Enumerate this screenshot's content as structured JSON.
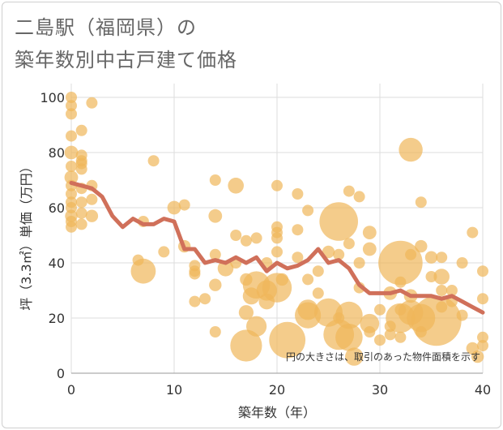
{
  "title_line1": "二島駅（福岡県）の",
  "title_line2": "築年数別中古戸建て価格",
  "chart_data": {
    "type": "scatter",
    "xlabel": "築年数（年）",
    "ylabel": "坪（3.3㎡）単価（万円）",
    "xlim": [
      0,
      40
    ],
    "ylim": [
      0,
      105
    ],
    "xticks": [
      0,
      10,
      20,
      30,
      40
    ],
    "yticks": [
      0,
      20,
      40,
      60,
      80,
      100
    ],
    "annotation": "円の大きさは、取引のあった物件面積を示す",
    "grid": true,
    "colors": {
      "bubble": "#f0b65a",
      "line": "#d0705a"
    },
    "points": [
      {
        "x": 0,
        "y": 100,
        "s": 1
      },
      {
        "x": 0,
        "y": 97,
        "s": 1
      },
      {
        "x": 0,
        "y": 94,
        "s": 1
      },
      {
        "x": 0,
        "y": 86,
        "s": 1
      },
      {
        "x": 0,
        "y": 80,
        "s": 1.2
      },
      {
        "x": 0,
        "y": 75,
        "s": 1
      },
      {
        "x": 0,
        "y": 71,
        "s": 1.2
      },
      {
        "x": 0,
        "y": 68,
        "s": 1
      },
      {
        "x": 0,
        "y": 65,
        "s": 1
      },
      {
        "x": 0,
        "y": 62,
        "s": 1
      },
      {
        "x": 0,
        "y": 60,
        "s": 1
      },
      {
        "x": 0,
        "y": 57,
        "s": 1.1
      },
      {
        "x": 0,
        "y": 55,
        "s": 1
      },
      {
        "x": 0,
        "y": 53,
        "s": 1
      },
      {
        "x": 1,
        "y": 88,
        "s": 1
      },
      {
        "x": 1,
        "y": 79,
        "s": 1
      },
      {
        "x": 1,
        "y": 77,
        "s": 1
      },
      {
        "x": 1,
        "y": 76,
        "s": 1
      },
      {
        "x": 1,
        "y": 74,
        "s": 1
      },
      {
        "x": 1,
        "y": 67,
        "s": 1
      },
      {
        "x": 1,
        "y": 62,
        "s": 1
      },
      {
        "x": 1,
        "y": 58,
        "s": 1
      },
      {
        "x": 1,
        "y": 54,
        "s": 1
      },
      {
        "x": 2,
        "y": 98,
        "s": 1
      },
      {
        "x": 2,
        "y": 68,
        "s": 1
      },
      {
        "x": 2,
        "y": 63,
        "s": 1
      },
      {
        "x": 2,
        "y": 57,
        "s": 1.1
      },
      {
        "x": 6.5,
        "y": 41,
        "s": 1
      },
      {
        "x": 7,
        "y": 37,
        "s": 2.2
      },
      {
        "x": 7,
        "y": 55,
        "s": 1
      },
      {
        "x": 8,
        "y": 77,
        "s": 1
      },
      {
        "x": 9,
        "y": 44,
        "s": 1
      },
      {
        "x": 10,
        "y": 60,
        "s": 1.2
      },
      {
        "x": 11,
        "y": 61,
        "s": 1
      },
      {
        "x": 11,
        "y": 46,
        "s": 1.1
      },
      {
        "x": 12,
        "y": 39,
        "s": 1
      },
      {
        "x": 12,
        "y": 37,
        "s": 1
      },
      {
        "x": 12,
        "y": 36,
        "s": 1
      },
      {
        "x": 12,
        "y": 26,
        "s": 1
      },
      {
        "x": 13,
        "y": 27,
        "s": 1
      },
      {
        "x": 14,
        "y": 70,
        "s": 1
      },
      {
        "x": 14,
        "y": 57,
        "s": 1.2
      },
      {
        "x": 14,
        "y": 43,
        "s": 1
      },
      {
        "x": 14,
        "y": 32,
        "s": 1.1
      },
      {
        "x": 14,
        "y": 15,
        "s": 1
      },
      {
        "x": 15,
        "y": 38,
        "s": 1.4
      },
      {
        "x": 16,
        "y": 68,
        "s": 1.4
      },
      {
        "x": 16,
        "y": 50,
        "s": 1
      },
      {
        "x": 16,
        "y": 40,
        "s": 1
      },
      {
        "x": 17,
        "y": 48,
        "s": 1
      },
      {
        "x": 17,
        "y": 34,
        "s": 1.1
      },
      {
        "x": 17,
        "y": 22,
        "s": 1.3
      },
      {
        "x": 17,
        "y": 10,
        "s": 2.8
      },
      {
        "x": 17.5,
        "y": 28,
        "s": 1.5
      },
      {
        "x": 18,
        "y": 49,
        "s": 1
      },
      {
        "x": 18,
        "y": 32,
        "s": 2.4
      },
      {
        "x": 18,
        "y": 17,
        "s": 1.8
      },
      {
        "x": 19,
        "y": 40,
        "s": 1
      },
      {
        "x": 19,
        "y": 30,
        "s": 1.8
      },
      {
        "x": 19,
        "y": 26,
        "s": 1.4
      },
      {
        "x": 20,
        "y": 68,
        "s": 1
      },
      {
        "x": 20,
        "y": 53,
        "s": 1
      },
      {
        "x": 20,
        "y": 51,
        "s": 1
      },
      {
        "x": 20,
        "y": 49,
        "s": 1
      },
      {
        "x": 20,
        "y": 44,
        "s": 1
      },
      {
        "x": 20,
        "y": 31,
        "s": 2.6
      },
      {
        "x": 20.5,
        "y": 34,
        "s": 1.1
      },
      {
        "x": 21,
        "y": 12,
        "s": 3.2
      },
      {
        "x": 22,
        "y": 65,
        "s": 1
      },
      {
        "x": 22,
        "y": 52,
        "s": 1
      },
      {
        "x": 22,
        "y": 42,
        "s": 1
      },
      {
        "x": 23,
        "y": 59,
        "s": 1
      },
      {
        "x": 23,
        "y": 34,
        "s": 1
      },
      {
        "x": 23,
        "y": 23,
        "s": 1.8
      },
      {
        "x": 23,
        "y": 21,
        "s": 2.3
      },
      {
        "x": 24,
        "y": 37,
        "s": 1
      },
      {
        "x": 24,
        "y": 29,
        "s": 1
      },
      {
        "x": 25,
        "y": 44,
        "s": 1.1
      },
      {
        "x": 25,
        "y": 22,
        "s": 2.5
      },
      {
        "x": 26,
        "y": 55,
        "s": 3.4
      },
      {
        "x": 26,
        "y": 43,
        "s": 1
      },
      {
        "x": 26,
        "y": 20,
        "s": 1
      },
      {
        "x": 26,
        "y": 14,
        "s": 2.7
      },
      {
        "x": 27,
        "y": 66,
        "s": 1
      },
      {
        "x": 27,
        "y": 47,
        "s": 1
      },
      {
        "x": 27,
        "y": 21,
        "s": 2.4
      },
      {
        "x": 27,
        "y": 13,
        "s": 2.4
      },
      {
        "x": 27.5,
        "y": 6,
        "s": 1.6
      },
      {
        "x": 28,
        "y": 64,
        "s": 1
      },
      {
        "x": 28,
        "y": 40,
        "s": 1
      },
      {
        "x": 28,
        "y": 31,
        "s": 1
      },
      {
        "x": 29,
        "y": 51,
        "s": 1.2
      },
      {
        "x": 29,
        "y": 45,
        "s": 1.2
      },
      {
        "x": 29,
        "y": 18,
        "s": 1.7
      },
      {
        "x": 29,
        "y": 15,
        "s": 1
      },
      {
        "x": 30,
        "y": 23,
        "s": 1
      },
      {
        "x": 30,
        "y": 12,
        "s": 1
      },
      {
        "x": 31,
        "y": 29,
        "s": 1.2
      },
      {
        "x": 31,
        "y": 17,
        "s": 1
      },
      {
        "x": 31,
        "y": 14,
        "s": 1
      },
      {
        "x": 32,
        "y": 40,
        "s": 3.9
      },
      {
        "x": 32,
        "y": 33,
        "s": 1
      },
      {
        "x": 32,
        "y": 23,
        "s": 1
      },
      {
        "x": 32,
        "y": 20,
        "s": 2.6
      },
      {
        "x": 32,
        "y": 13,
        "s": 1
      },
      {
        "x": 33,
        "y": 81,
        "s": 2.1
      },
      {
        "x": 33,
        "y": 43,
        "s": 1
      },
      {
        "x": 33,
        "y": 28,
        "s": 1.2
      },
      {
        "x": 33,
        "y": 22,
        "s": 2.2
      },
      {
        "x": 34,
        "y": 62,
        "s": 1
      },
      {
        "x": 34,
        "y": 46,
        "s": 1.1
      },
      {
        "x": 34,
        "y": 20,
        "s": 2.5
      },
      {
        "x": 34,
        "y": 15,
        "s": 1
      },
      {
        "x": 35,
        "y": 42,
        "s": 1.1
      },
      {
        "x": 35,
        "y": 35,
        "s": 1
      },
      {
        "x": 35.5,
        "y": 19,
        "s": 4.4
      },
      {
        "x": 36,
        "y": 42,
        "s": 1
      },
      {
        "x": 36,
        "y": 35,
        "s": 1.4
      },
      {
        "x": 36,
        "y": 30,
        "s": 1
      },
      {
        "x": 36,
        "y": 24,
        "s": 1
      },
      {
        "x": 37,
        "y": 30,
        "s": 1
      },
      {
        "x": 37,
        "y": 26,
        "s": 1
      },
      {
        "x": 38,
        "y": 40,
        "s": 1
      },
      {
        "x": 38,
        "y": 21,
        "s": 1
      },
      {
        "x": 39,
        "y": 51,
        "s": 1
      },
      {
        "x": 39,
        "y": 9,
        "s": 1.1
      },
      {
        "x": 39.5,
        "y": 6,
        "s": 1.1
      },
      {
        "x": 40,
        "y": 37,
        "s": 1
      },
      {
        "x": 40,
        "y": 27,
        "s": 1
      },
      {
        "x": 40,
        "y": 13,
        "s": 1
      },
      {
        "x": 40,
        "y": 10,
        "s": 1
      }
    ],
    "trend": {
      "x": [
        0,
        1,
        2,
        3,
        4,
        5,
        6,
        7,
        8,
        9,
        10,
        11,
        12,
        13,
        14,
        15,
        16,
        17,
        18,
        19,
        20,
        21,
        22,
        23,
        24,
        25,
        26,
        27,
        28,
        29,
        30,
        31,
        32,
        33,
        34,
        35,
        36,
        37,
        38,
        39,
        40
      ],
      "y": [
        69,
        68,
        67,
        64,
        57,
        53,
        56,
        54,
        54,
        56,
        55,
        45,
        45,
        40,
        41,
        40,
        42,
        40,
        42,
        37,
        40,
        38,
        39,
        41,
        45,
        40,
        41,
        38,
        32,
        29,
        29,
        29,
        30,
        28,
        28,
        28,
        27,
        28,
        26,
        24,
        22
      ]
    }
  }
}
